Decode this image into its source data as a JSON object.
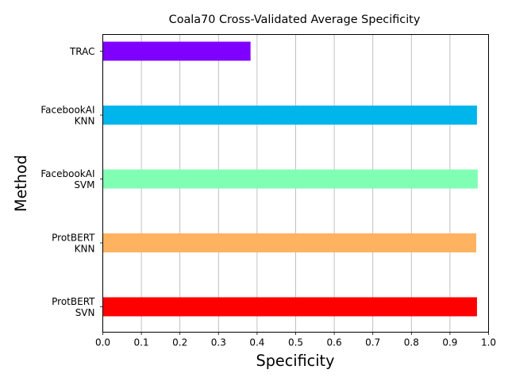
{
  "chart_data": {
    "type": "bar",
    "orientation": "horizontal",
    "title": "Coala70 Cross-Validated Average Specificity",
    "xlabel": "Specificity",
    "ylabel": "Method",
    "xlim": [
      0.0,
      1.0
    ],
    "xticks": [
      "0.0",
      "0.1",
      "0.2",
      "0.3",
      "0.4",
      "0.5",
      "0.6",
      "0.7",
      "0.8",
      "0.9",
      "1.0"
    ],
    "grid": "vertical",
    "legend": "none",
    "categories": [
      {
        "lines": [
          "ProtBERT",
          "SVN"
        ]
      },
      {
        "lines": [
          "ProtBERT",
          "KNN"
        ]
      },
      {
        "lines": [
          "FacebookAI",
          "SVM"
        ]
      },
      {
        "lines": [
          "FacebookAI",
          "KNN"
        ]
      },
      {
        "lines": [
          "TRAC"
        ]
      }
    ],
    "values": [
      0.97,
      0.968,
      0.972,
      0.97,
      0.383
    ],
    "colors": [
      "#ff0000",
      "#ffb360",
      "#80ffb4",
      "#00b5eb",
      "#8000ff"
    ]
  }
}
